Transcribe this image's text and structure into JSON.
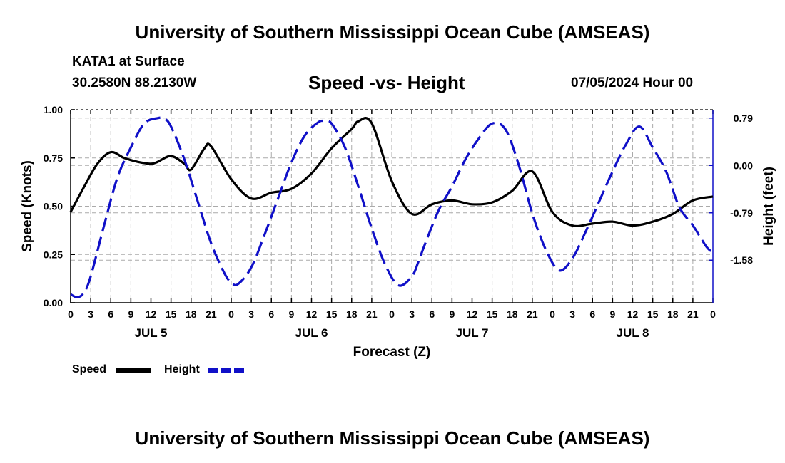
{
  "page": {
    "title_top": "University of Southern Mississippi Ocean Cube (AMSEAS)",
    "title_bottom": "University of Southern Mississippi Ocean Cube (AMSEAS)",
    "station_line": "KATA1 at Surface",
    "coords_line": "30.2580N  88.2130W",
    "chart_title": "Speed -vs- Height",
    "date_line": "07/05/2024 Hour 00"
  },
  "legend": {
    "speed_label": "Speed",
    "height_label": "Height"
  },
  "colors": {
    "speed": "#000000",
    "height": "#1010c8",
    "grid": "#aaaaaa"
  },
  "chart_data": {
    "type": "line",
    "title": "Speed -vs- Height",
    "xlabel": "Forecast (Z)",
    "ylabel": "Speed (Knots)",
    "y2label": "Height (feet)",
    "x_unit": "hours from 07/05/2024 00Z",
    "xlim": [
      0,
      96
    ],
    "ylim": [
      0,
      1.0
    ],
    "y2lim": [
      -2.29,
      0.93
    ],
    "x_tick_labels": [
      "0",
      "3",
      "6",
      "9",
      "12",
      "15",
      "18",
      "21",
      "0",
      "3",
      "6",
      "9",
      "12",
      "15",
      "18",
      "21",
      "0",
      "3",
      "6",
      "9",
      "12",
      "15",
      "18",
      "21",
      "0",
      "3",
      "6",
      "9",
      "12",
      "15",
      "18",
      "21",
      "0"
    ],
    "day_labels": [
      {
        "hour": 12,
        "label": "JUL 5"
      },
      {
        "hour": 36,
        "label": "JUL 6"
      },
      {
        "hour": 60,
        "label": "JUL 7"
      },
      {
        "hour": 84,
        "label": "JUL 8"
      }
    ],
    "y_ticks": [
      "0.00",
      "0.25",
      "0.50",
      "0.75",
      "1.00"
    ],
    "y2_ticks": [
      "0.79",
      "0.00",
      "-0.79",
      "-1.58"
    ],
    "y2_tick_values": [
      0.79,
      0.0,
      -0.79,
      -1.58
    ],
    "series": [
      {
        "name": "Speed",
        "axis": "left",
        "style": "solid",
        "x": [
          0,
          2,
          4,
          6,
          8,
          10,
          12,
          13,
          15,
          17,
          18,
          20,
          21,
          24,
          27,
          30,
          33,
          36,
          39,
          42,
          43,
          45,
          48,
          51,
          54,
          57,
          60,
          63,
          66,
          69,
          72,
          75,
          78,
          81,
          84,
          87,
          90,
          93,
          96
        ],
        "y": [
          0.47,
          0.6,
          0.72,
          0.78,
          0.75,
          0.73,
          0.72,
          0.73,
          0.76,
          0.72,
          0.69,
          0.8,
          0.81,
          0.64,
          0.54,
          0.57,
          0.59,
          0.67,
          0.8,
          0.9,
          0.94,
          0.93,
          0.63,
          0.46,
          0.51,
          0.53,
          0.51,
          0.52,
          0.58,
          0.68,
          0.47,
          0.4,
          0.41,
          0.42,
          0.4,
          0.42,
          0.46,
          0.53,
          0.55
        ]
      },
      {
        "name": "Height",
        "axis": "right",
        "style": "dashed",
        "x": [
          0,
          1,
          2,
          3,
          5,
          7,
          9,
          11,
          13,
          14,
          15,
          17,
          19,
          21,
          23,
          24,
          25,
          27,
          29,
          31,
          33,
          35,
          37,
          38,
          39,
          41,
          43,
          45,
          47,
          49,
          51,
          52,
          53,
          55,
          57,
          59,
          61,
          63,
          65,
          67,
          69,
          71,
          73,
          75,
          77,
          79,
          81,
          83,
          85,
          87,
          89,
          91,
          93,
          95,
          96
        ],
        "y": [
          -2.15,
          -2.2,
          -2.12,
          -1.85,
          -1.0,
          -0.2,
          0.3,
          0.7,
          0.79,
          0.78,
          0.65,
          0.1,
          -0.6,
          -1.3,
          -1.8,
          -1.95,
          -1.98,
          -1.7,
          -1.15,
          -0.55,
          0.05,
          0.5,
          0.72,
          0.74,
          0.7,
          0.3,
          -0.35,
          -1.05,
          -1.65,
          -2.0,
          -1.85,
          -1.6,
          -1.3,
          -0.75,
          -0.35,
          0.1,
          0.45,
          0.7,
          0.6,
          0.0,
          -0.8,
          -1.4,
          -1.75,
          -1.55,
          -1.1,
          -0.6,
          -0.1,
          0.35,
          0.65,
          0.3,
          -0.1,
          -0.7,
          -1.0,
          -1.35,
          -1.45
        ]
      }
    ]
  }
}
